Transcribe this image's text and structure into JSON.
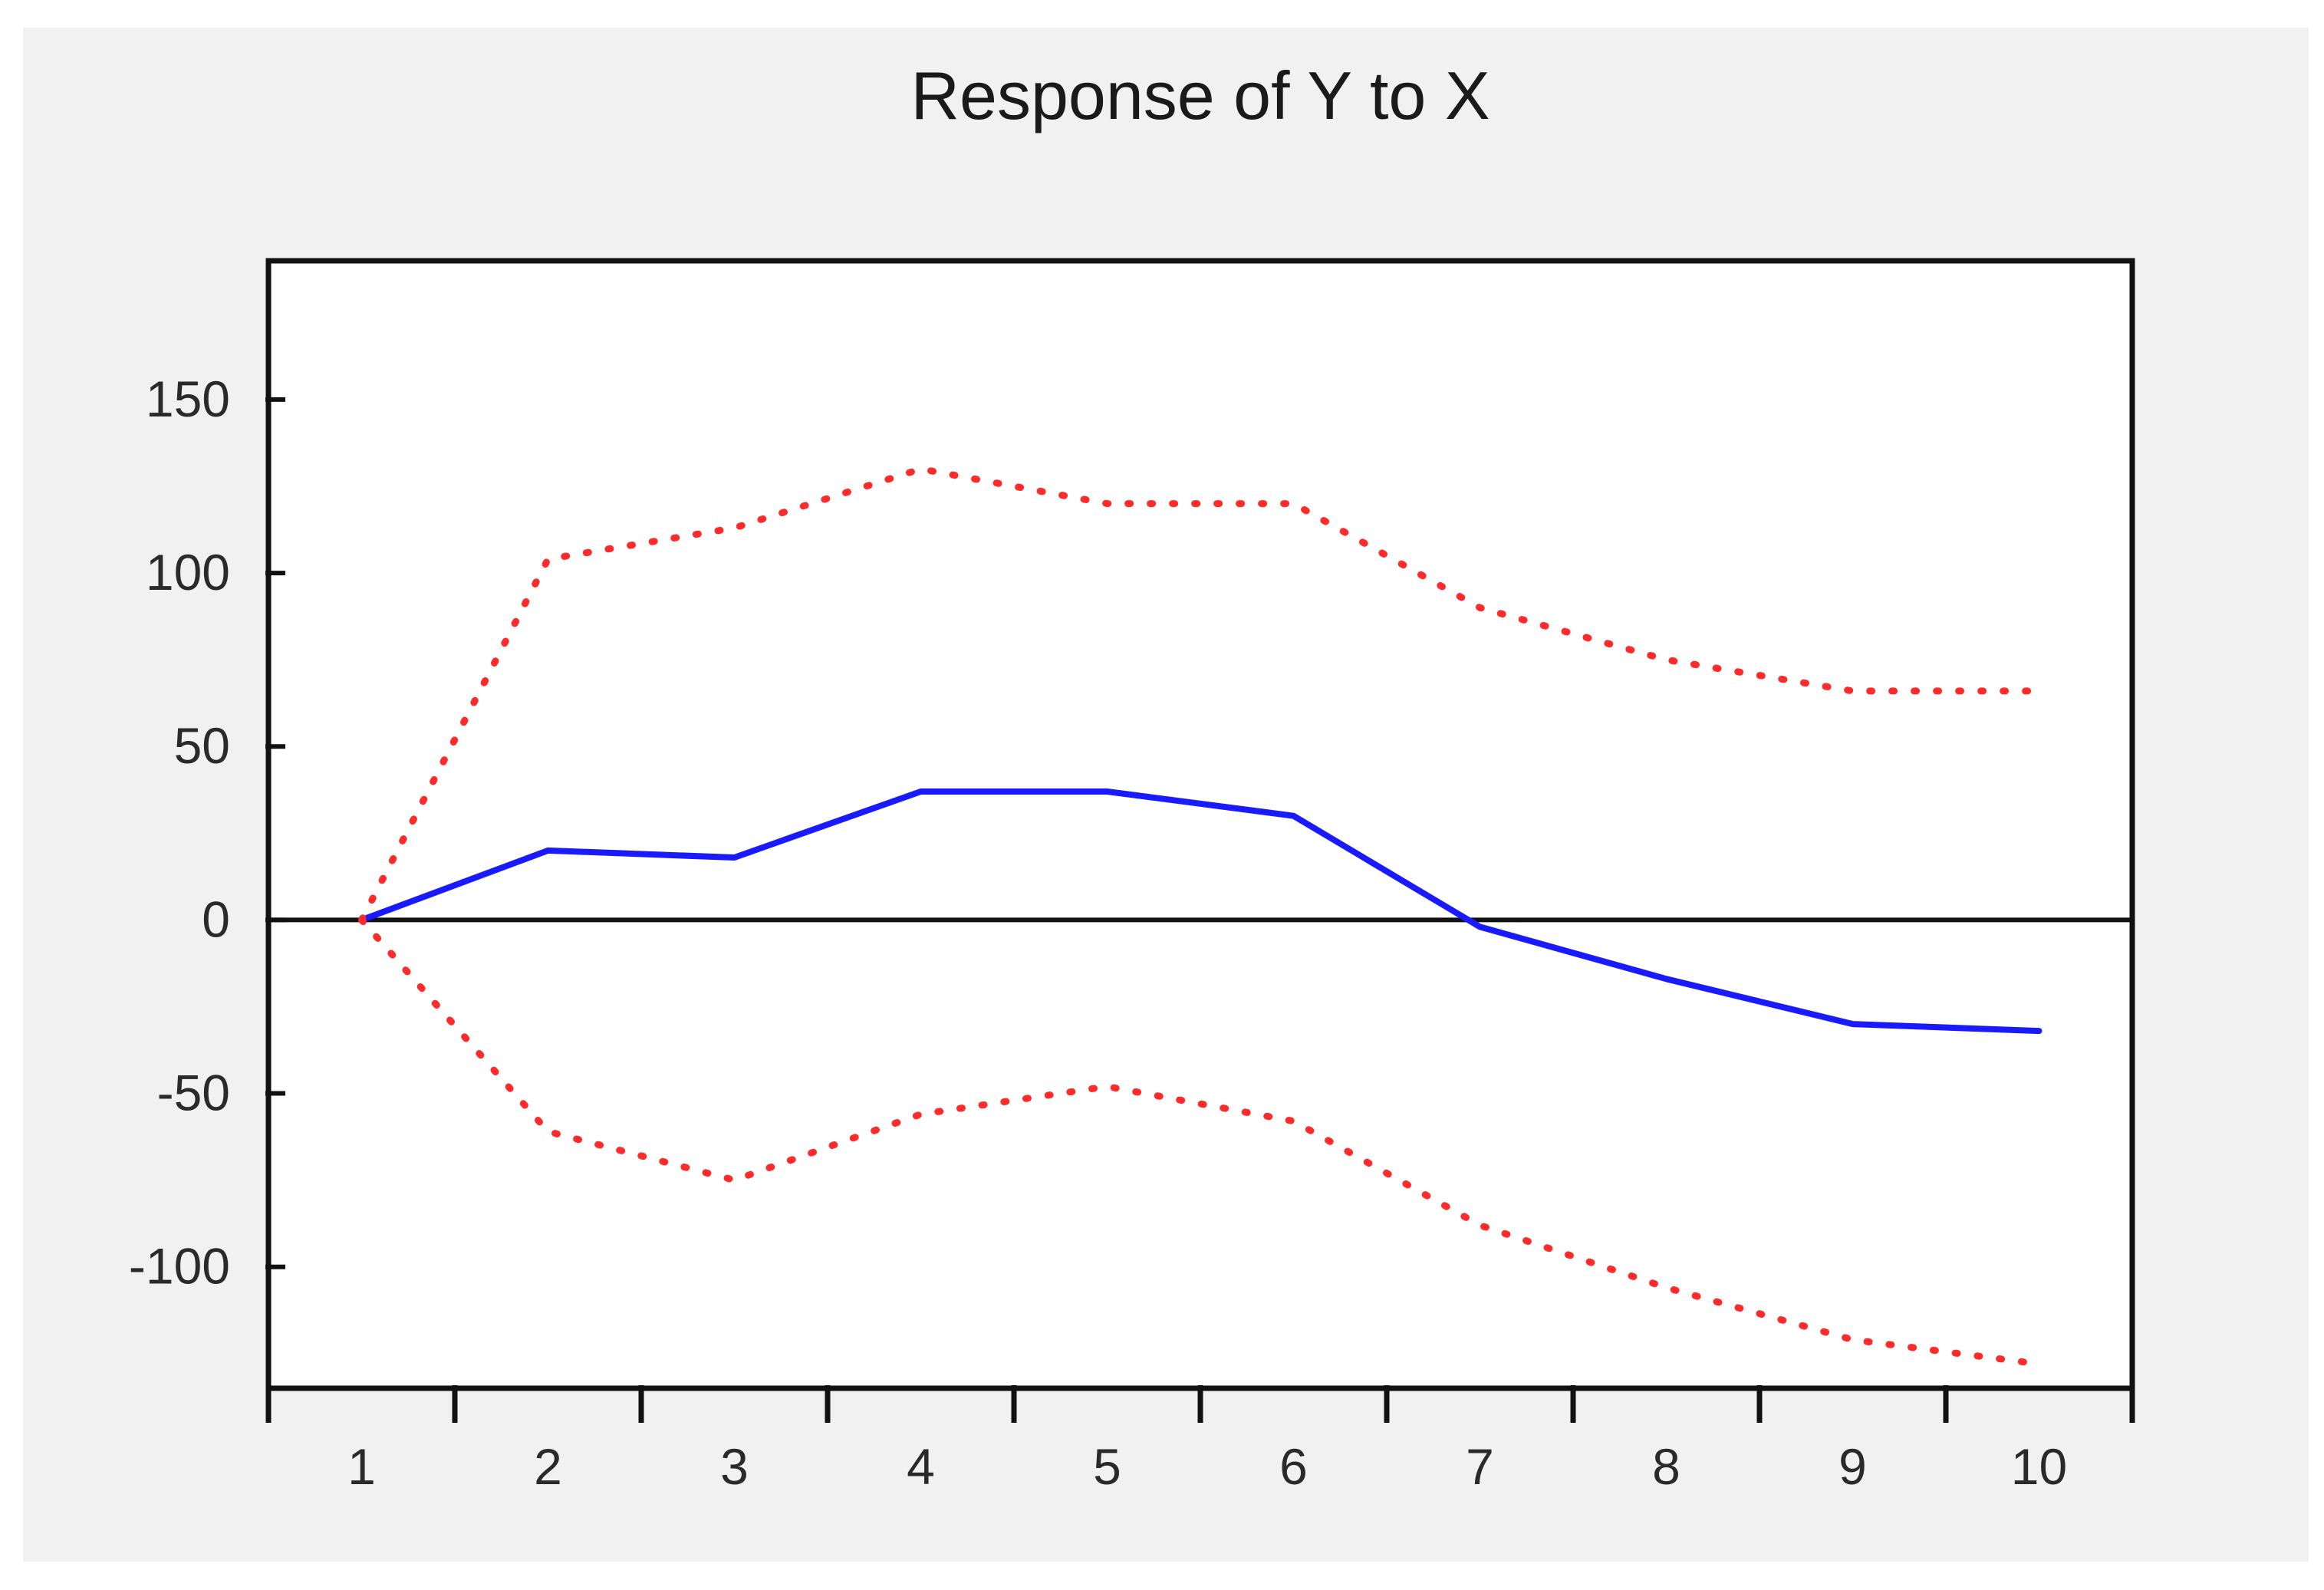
{
  "chart_data": {
    "type": "line",
    "title": "Response of Y to X",
    "xlabel": "",
    "ylabel": "",
    "categories": [
      "1",
      "2",
      "3",
      "4",
      "5",
      "6",
      "7",
      "8",
      "9",
      "10"
    ],
    "x": [
      1,
      2,
      3,
      4,
      5,
      6,
      7,
      8,
      9,
      10
    ],
    "ylim": [
      -135,
      190
    ],
    "yticks": [
      150,
      100,
      50,
      0,
      -50,
      -100
    ],
    "ytick_labels": [
      "150",
      "100",
      "50",
      "0",
      "-50",
      "-100"
    ],
    "zero_line": true,
    "grid": false,
    "legend": "none",
    "series": [
      {
        "role": "response",
        "style": "solid",
        "color": "#1a1aff",
        "values": [
          0,
          20,
          18,
          37,
          37,
          30,
          -2,
          -17,
          -30,
          -32
        ]
      },
      {
        "role": "upper-band",
        "style": "dotted",
        "color": "#ff2a2a",
        "values": [
          0,
          104,
          113,
          130,
          120,
          120,
          90,
          75,
          66,
          66
        ]
      },
      {
        "role": "lower-band",
        "style": "dotted",
        "color": "#ff2a2a",
        "values": [
          0,
          -61,
          -75,
          -56,
          -48,
          -58,
          -88,
          -106,
          -121,
          -128
        ]
      }
    ]
  }
}
